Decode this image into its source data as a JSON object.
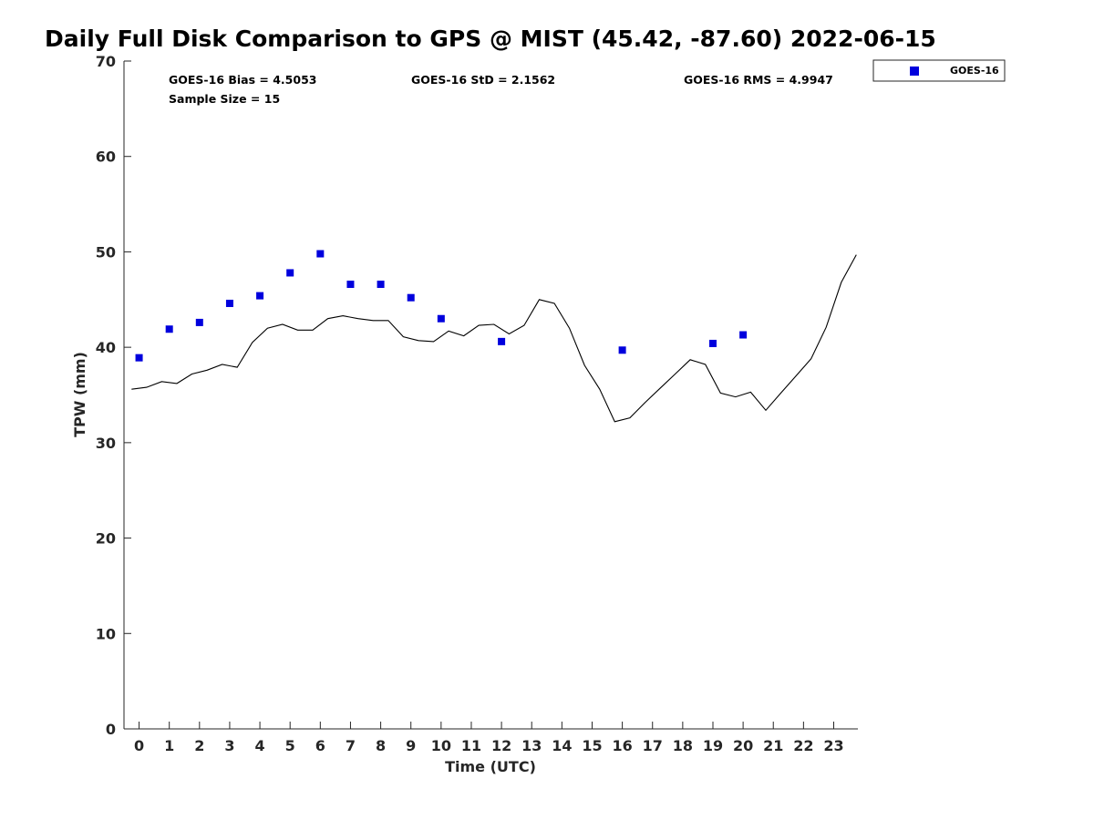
{
  "chart_data": {
    "type": "scatter+line",
    "title": "Daily Full Disk Comparison to GPS @ MIST (45.42, -87.60) 2022-06-15",
    "xlabel": "Time (UTC)",
    "ylabel": "TPW (mm)",
    "xlim": [
      -0.5,
      23.8
    ],
    "ylim": [
      0,
      70
    ],
    "xticks": [
      0,
      1,
      2,
      3,
      4,
      5,
      6,
      7,
      8,
      9,
      10,
      11,
      12,
      13,
      14,
      15,
      16,
      17,
      18,
      19,
      20,
      21,
      22,
      23
    ],
    "yticks": [
      0,
      10,
      20,
      30,
      40,
      50,
      60,
      70
    ],
    "stats": {
      "bias": "GOES-16 Bias = 4.5053",
      "std": "GOES-16 StD = 2.1562",
      "rms": "GOES-16 RMS = 4.9947",
      "sample": "Sample Size = 15"
    },
    "legend": {
      "label": "GOES-16",
      "position": "top-right-outside",
      "marker_color": "#0000dd"
    },
    "series": [
      {
        "name": "GOES-16",
        "kind": "markers",
        "color": "#0000dd",
        "x": [
          0,
          1,
          2,
          3,
          4,
          5,
          6,
          7,
          8,
          9,
          10,
          12,
          16,
          19,
          20
        ],
        "y": [
          38.9,
          41.9,
          42.6,
          44.6,
          45.4,
          47.8,
          49.8,
          46.6,
          46.6,
          45.2,
          43.0,
          40.6,
          39.7,
          40.4,
          41.3
        ]
      },
      {
        "name": "GPS",
        "kind": "line",
        "color": "#000000",
        "x": [
          -0.25,
          0.25,
          0.75,
          1.25,
          1.75,
          2.25,
          2.75,
          3.25,
          3.75,
          4.25,
          4.75,
          5.25,
          5.75,
          6.25,
          6.75,
          7.25,
          7.75,
          8.25,
          8.75,
          9.25,
          9.75,
          10.25,
          10.75,
          11.25,
          11.75,
          12.25,
          12.75,
          13.25,
          13.75,
          14.25,
          14.75,
          15.25,
          15.75,
          16.25,
          16.75,
          17.25,
          17.75,
          18.25,
          18.75,
          19.25,
          19.75,
          20.25,
          20.75,
          21.25,
          21.75,
          22.25,
          22.75,
          23.25,
          23.75
        ],
        "y": [
          35.6,
          35.8,
          36.4,
          36.2,
          37.2,
          37.6,
          38.2,
          37.9,
          40.5,
          42.0,
          42.4,
          41.8,
          41.8,
          43.0,
          43.3,
          43.0,
          42.8,
          42.8,
          41.1,
          40.7,
          40.6,
          41.7,
          41.2,
          42.3,
          42.4,
          41.4,
          42.3,
          45.0,
          44.6,
          42.0,
          38.1,
          35.6,
          32.2,
          32.6,
          34.2,
          35.7,
          37.2,
          38.7,
          38.2,
          35.2,
          34.8,
          35.3,
          33.4,
          35.2,
          37.0,
          38.8,
          42.1,
          46.8,
          49.7
        ]
      }
    ]
  }
}
